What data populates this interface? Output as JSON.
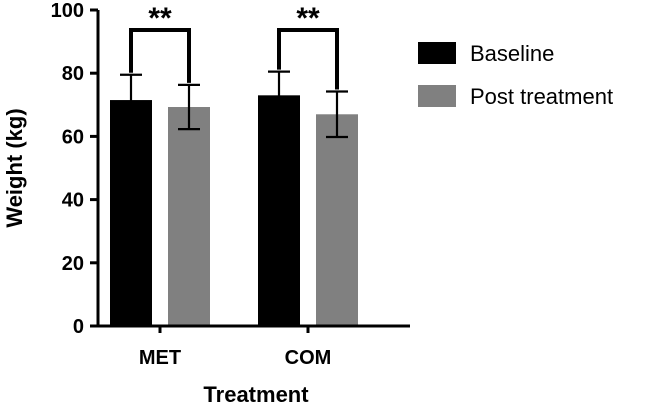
{
  "chart_data": {
    "type": "bar",
    "title": "",
    "xlabel": "Treatment",
    "ylabel": "Weight (kg)",
    "ylim": [
      0,
      100
    ],
    "yticks": [
      0,
      20,
      40,
      60,
      80,
      100
    ],
    "categories": [
      "MET",
      "COM"
    ],
    "series": [
      {
        "name": "Baseline",
        "color": "#000000",
        "values": [
          71.5,
          73.0
        ],
        "error": [
          8.0,
          7.5
        ]
      },
      {
        "name": "Post treatment",
        "color": "#808080",
        "values": [
          69.3,
          67.0
        ],
        "error": [
          7.0,
          7.2
        ]
      }
    ],
    "significance": [
      {
        "category": "MET",
        "label": "**"
      },
      {
        "category": "COM",
        "label": "**"
      }
    ],
    "legend": {
      "placement": "top-right"
    }
  }
}
